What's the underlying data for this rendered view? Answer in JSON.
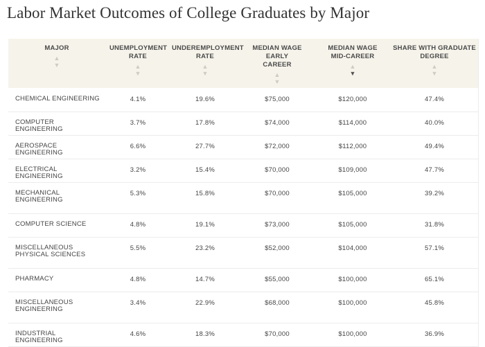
{
  "page_title": "Labor Market Outcomes of College Graduates by Major",
  "columns": [
    {
      "label": "MAJOR",
      "sort": "none"
    },
    {
      "label": "UNEMPLOYMENT RATE",
      "sort": "none"
    },
    {
      "label": "UNDEREMPLOYMENT RATE",
      "sort": "none"
    },
    {
      "label": "MEDIAN WAGE EARLY CAREER",
      "sort": "none"
    },
    {
      "label": "MEDIAN WAGE MID-CAREER",
      "sort": "descending"
    },
    {
      "label": "SHARE WITH GRADUATE DEGREE",
      "sort": "none"
    }
  ],
  "sort_icons": {
    "up": "▲",
    "down": "▼"
  },
  "rows": [
    {
      "major": "CHEMICAL ENGINEERING",
      "unemployment": "4.1%",
      "underemployment": "19.6%",
      "wage_early": "$75,000",
      "wage_mid": "$120,000",
      "grad_share": "47.4%"
    },
    {
      "major": "COMPUTER ENGINEERING",
      "unemployment": "3.7%",
      "underemployment": "17.8%",
      "wage_early": "$74,000",
      "wage_mid": "$114,000",
      "grad_share": "40.0%"
    },
    {
      "major": "AEROSPACE ENGINEERING",
      "unemployment": "6.6%",
      "underemployment": "27.7%",
      "wage_early": "$72,000",
      "wage_mid": "$112,000",
      "grad_share": "49.4%"
    },
    {
      "major": "ELECTRICAL ENGINEERING",
      "unemployment": "3.2%",
      "underemployment": "15.4%",
      "wage_early": "$70,000",
      "wage_mid": "$109,000",
      "grad_share": "47.7%"
    },
    {
      "major": "MECHANICAL ENGINEERING",
      "unemployment": "5.3%",
      "underemployment": "15.8%",
      "wage_early": "$70,000",
      "wage_mid": "$105,000",
      "grad_share": "39.2%"
    },
    {
      "major": "COMPUTER SCIENCE",
      "unemployment": "4.8%",
      "underemployment": "19.1%",
      "wage_early": "$73,000",
      "wage_mid": "$105,000",
      "grad_share": "31.8%"
    },
    {
      "major": "MISCELLANEOUS PHYSICAL SCIENCES",
      "unemployment": "5.5%",
      "underemployment": "23.2%",
      "wage_early": "$52,000",
      "wage_mid": "$104,000",
      "grad_share": "57.1%"
    },
    {
      "major": "PHARMACY",
      "unemployment": "4.8%",
      "underemployment": "14.7%",
      "wage_early": "$55,000",
      "wage_mid": "$100,000",
      "grad_share": "65.1%"
    },
    {
      "major": "MISCELLANEOUS ENGINEERING",
      "unemployment": "3.4%",
      "underemployment": "22.9%",
      "wage_early": "$68,000",
      "wage_mid": "$100,000",
      "grad_share": "45.8%"
    },
    {
      "major": "INDUSTRIAL ENGINEERING",
      "unemployment": "4.6%",
      "underemployment": "18.3%",
      "wage_early": "$70,000",
      "wage_mid": "$100,000",
      "grad_share": "36.9%"
    }
  ],
  "colors": {
    "header_bg": "#f6f3ea",
    "row_border": "#ececec",
    "text": "#444444"
  }
}
